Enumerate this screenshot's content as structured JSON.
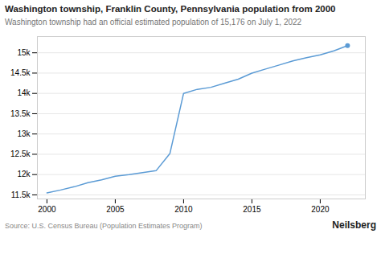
{
  "chart_data": {
    "type": "line",
    "title": "Washington township, Franklin County, Pennsylvania population from 2000",
    "subtitle": "Washington township had an official estimated population of 15,176 on July 1, 2022",
    "annotations": [
      "Source: U.S. Census Bureau (Population Estimates Program)",
      "Neilsberg"
    ],
    "x": [
      2000,
      2001,
      2002,
      2003,
      2004,
      2005,
      2006,
      2007,
      2008,
      2009,
      2010,
      2011,
      2012,
      2013,
      2014,
      2015,
      2016,
      2017,
      2018,
      2019,
      2020,
      2021,
      2022
    ],
    "values": [
      11550,
      11620,
      11700,
      11800,
      11870,
      11960,
      12000,
      12050,
      12100,
      12520,
      14000,
      14100,
      14150,
      14250,
      14350,
      14500,
      14600,
      14700,
      14800,
      14880,
      14950,
      15050,
      15176
    ],
    "color": "#5b9bd5",
    "xlim": [
      1999.3,
      2023.3
    ],
    "xticks": [
      2000,
      2005,
      2010,
      2015,
      2020
    ],
    "ylim": [
      11400,
      15400
    ],
    "yticks": [
      {
        "value": 11500,
        "label": "11.5k"
      },
      {
        "value": 12000,
        "label": "12k"
      },
      {
        "value": 12500,
        "label": "12.5k"
      },
      {
        "value": 13000,
        "label": "13k"
      },
      {
        "value": 13500,
        "label": "13.5k"
      },
      {
        "value": 14000,
        "label": "14k"
      },
      {
        "value": 14500,
        "label": "14.5k"
      },
      {
        "value": 15000,
        "label": "15k"
      }
    ],
    "grid": true
  }
}
